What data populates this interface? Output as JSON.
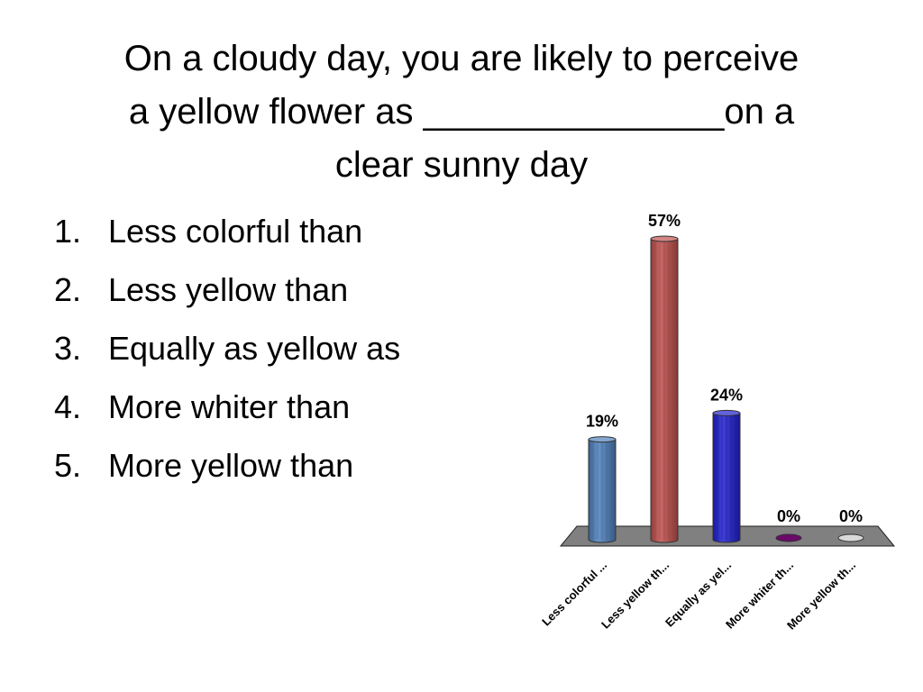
{
  "slide": {
    "title_lines": [
      "On a cloudy day, you are likely to perceive",
      "a yellow flower as _______________on a",
      "clear sunny day"
    ],
    "options": [
      {
        "number": "1.",
        "text": "Less colorful than"
      },
      {
        "number": "2.",
        "text": "Less yellow than"
      },
      {
        "number": "3.",
        "text": "Equally as yellow as"
      },
      {
        "number": "4.",
        "text": "More whiter than"
      },
      {
        "number": "5.",
        "text": "More yellow than"
      }
    ]
  },
  "chart_data": {
    "type": "bar",
    "categories": [
      "Less colorful ...",
      "Less yellow th...",
      "Equally as yel...",
      "More whiter th...",
      "More yellow th..."
    ],
    "values": [
      19,
      57,
      24,
      0,
      0
    ],
    "data_labels": [
      "19%",
      "57%",
      "24%",
      "0%",
      "0%"
    ],
    "ylim": [
      0,
      57
    ],
    "colors": [
      "#4f81bd",
      "#c0504d",
      "#1f1fd0",
      "#6a0a6a",
      "#d9d9d9"
    ],
    "floor_color": "#808080",
    "grid": false,
    "legend": "none",
    "title": "",
    "xlabel": "",
    "ylabel": ""
  }
}
